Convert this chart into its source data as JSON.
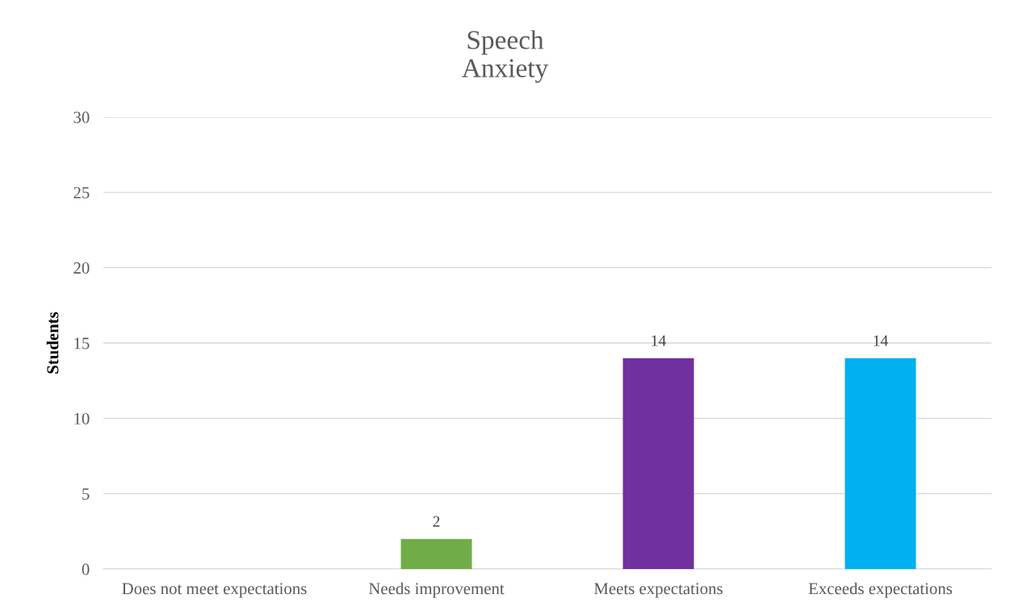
{
  "chart_data": {
    "type": "bar",
    "title": "Speech\nAnxiety",
    "ylabel": "Students",
    "categories": [
      "Does not meet expectations",
      "Needs improvement",
      "Meets expectations",
      "Exceeds expectations"
    ],
    "values": [
      0,
      2,
      14,
      14
    ],
    "colors": [
      "#4472c4",
      "#70ad47",
      "#7030a0",
      "#00b0f0"
    ],
    "value_labels": [
      null,
      "2",
      "14",
      "14"
    ],
    "ylim": [
      0,
      30
    ],
    "yticks": [
      0,
      5,
      10,
      15,
      20,
      25,
      30
    ],
    "grid": "y",
    "legend": false
  }
}
